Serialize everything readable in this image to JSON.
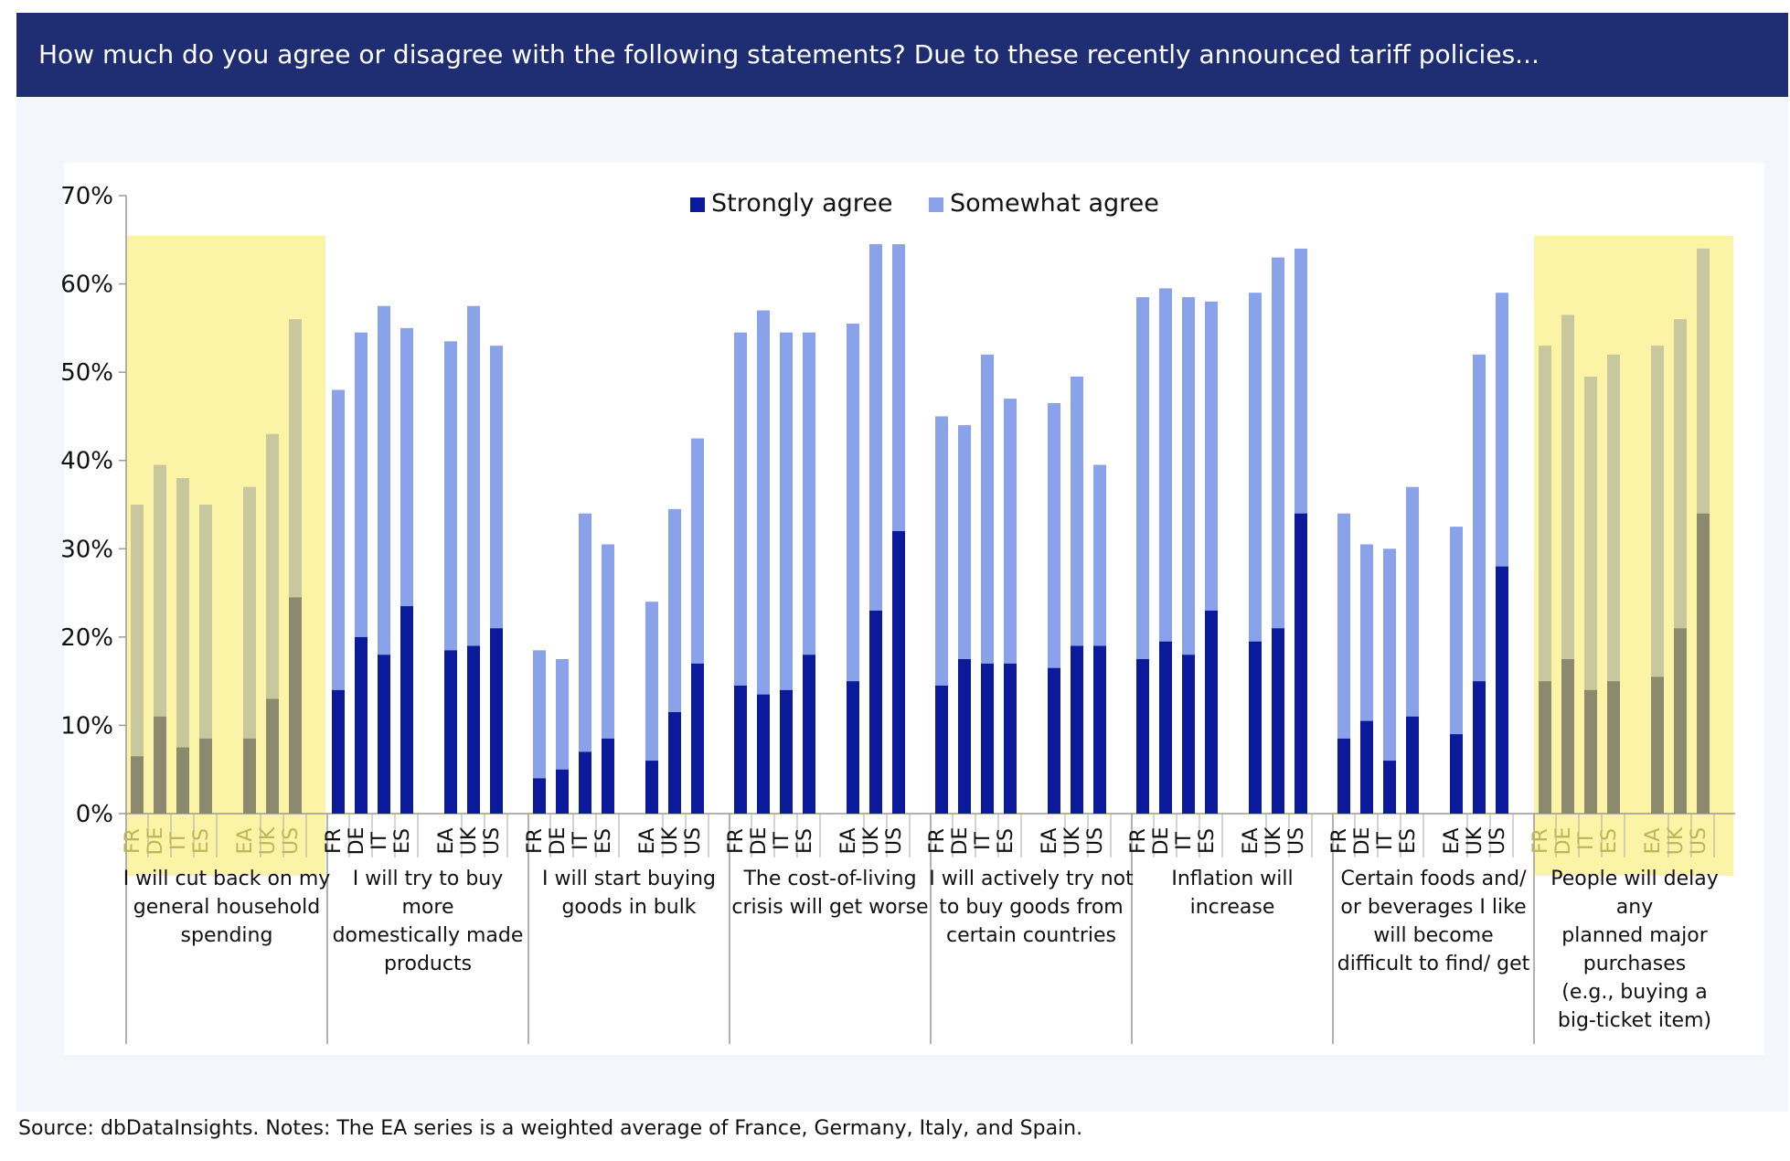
{
  "header": {
    "title": "How much do you agree or disagree with the following statements? Due to these recently announced tariff policies..."
  },
  "source": {
    "text": "Source: dbDataInsights.  Notes: The EA series is a weighted average of France, Germany, Italy, and Spain."
  },
  "colors": {
    "strongly": "#0a1a9a",
    "somewhat": "#8aa2ea",
    "highlight": "#fbf3a5",
    "header_bg": "#1f2d73"
  },
  "chart_data": {
    "type": "bar",
    "stacked": true,
    "ylim": [
      0,
      70
    ],
    "yticks": [
      0,
      10,
      20,
      30,
      40,
      50,
      60,
      70
    ],
    "ytick_labels": [
      "0%",
      "10%",
      "20%",
      "30%",
      "40%",
      "50%",
      "60%",
      "70%"
    ],
    "legend": [
      "Strongly agree",
      "Somewhat agree"
    ],
    "legend_position": "top-center",
    "grid": false,
    "subcategories": [
      "FR",
      "DE",
      "IT",
      "ES",
      "EA",
      "UK",
      "US"
    ],
    "groups": [
      {
        "label_lines": [
          "I will cut back on my",
          "general household",
          "spending"
        ],
        "highlighted": true,
        "strongly": [
          6.5,
          11.0,
          7.5,
          8.5,
          8.5,
          13.0,
          24.5
        ],
        "total": [
          35.0,
          39.5,
          38.0,
          35.0,
          37.0,
          43.0,
          56.0
        ]
      },
      {
        "label_lines": [
          "I will try to buy",
          "more",
          "domestically made",
          "products"
        ],
        "highlighted": false,
        "strongly": [
          14.0,
          20.0,
          18.0,
          23.5,
          18.5,
          19.0,
          21.0
        ],
        "total": [
          48.0,
          54.5,
          57.5,
          55.0,
          53.5,
          57.5,
          53.0
        ]
      },
      {
        "label_lines": [
          "I will start buying",
          "goods in bulk"
        ],
        "highlighted": false,
        "strongly": [
          4.0,
          5.0,
          7.0,
          8.5,
          6.0,
          11.5,
          17.0
        ],
        "total": [
          18.5,
          17.5,
          34.0,
          30.5,
          24.0,
          34.5,
          42.5
        ]
      },
      {
        "label_lines": [
          "The cost-of-living",
          "crisis will get worse"
        ],
        "highlighted": false,
        "strongly": [
          14.5,
          13.5,
          14.0,
          18.0,
          15.0,
          23.0,
          32.0
        ],
        "total": [
          54.5,
          57.0,
          54.5,
          54.5,
          55.5,
          64.5,
          64.5
        ]
      },
      {
        "label_lines": [
          "I will actively try not",
          "to buy goods from",
          "certain countries"
        ],
        "highlighted": false,
        "strongly": [
          14.5,
          17.5,
          17.0,
          17.0,
          16.5,
          19.0,
          19.0
        ],
        "total": [
          45.0,
          44.0,
          52.0,
          47.0,
          46.5,
          49.5,
          39.5
        ]
      },
      {
        "label_lines": [
          "Inflation will",
          "increase"
        ],
        "highlighted": false,
        "strongly": [
          17.5,
          19.5,
          18.0,
          23.0,
          19.5,
          21.0,
          34.0
        ],
        "total": [
          58.5,
          59.5,
          58.5,
          58.0,
          59.0,
          63.0,
          64.0
        ]
      },
      {
        "label_lines": [
          "Certain foods and/",
          "or beverages I like",
          "will become",
          "difficult to find/ get"
        ],
        "highlighted": false,
        "strongly": [
          8.5,
          10.5,
          6.0,
          11.0,
          9.0,
          15.0,
          28.0
        ],
        "total": [
          34.0,
          30.5,
          30.0,
          37.0,
          32.5,
          52.0,
          59.0
        ]
      },
      {
        "label_lines": [
          "People will delay",
          "any",
          "planned major",
          "purchases",
          "(e.g., buying a",
          "big-ticket item)"
        ],
        "highlighted": true,
        "strongly": [
          15.0,
          17.5,
          14.0,
          15.0,
          15.5,
          21.0,
          34.0
        ],
        "total": [
          53.0,
          56.5,
          49.5,
          52.0,
          53.0,
          56.0,
          64.0
        ]
      }
    ]
  }
}
